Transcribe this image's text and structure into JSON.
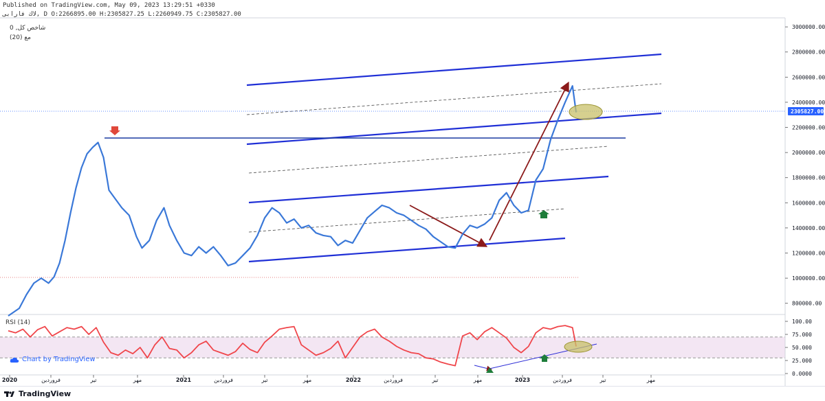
{
  "header": {
    "published": "Published on TradingView.com, May 09, 2023 13:29:51 +0330",
    "ohlc": "لاك فارابی, D O:2266895.00 H:2305827.25 L:2260949.75 C:2305827.00",
    "legend_title": "0 ,شاخص کل",
    "legend_ma": "(20) مع"
  },
  "rsi_label": "RSI (14)",
  "brand_text": "Chart by TradingView",
  "footer_logo": "TradingView",
  "colors": {
    "price": "#3a78d8",
    "channel": "#1f2fd6",
    "resistance": "#1a3aa0",
    "arrow": "#8b1a1a",
    "rsi": "#f0454a",
    "rsi_band": "#f3e6f3",
    "marker_up": "#1e7d3a",
    "marker_down": "#e0483a",
    "ellipse": "#c8c06a",
    "last_price": "#2962ff"
  },
  "chart_data": [
    {
      "type": "line",
      "title": "شاخص کل",
      "y_axis_ticks": [
        "3000000.00",
        "2800000.00",
        "2600000.00",
        "2400000.00",
        "2200000.00",
        "2000000.00",
        "1800000.00",
        "1600000.00",
        "1400000.00",
        "1200000.00",
        "1000000.00",
        "800000.00"
      ],
      "ylim": [
        700000,
        3050000
      ],
      "x_axis_ticks": [
        "2020",
        "فروردین",
        "تیر",
        "مهر",
        "2021",
        "فروردین",
        "تیر",
        "مهر",
        "2022",
        "فروردین",
        "تیر",
        "مهر",
        "2023",
        "فروردین",
        "تیر",
        "مهر"
      ],
      "last_price_label": "2305827.00",
      "series": [
        {
          "name": "شاخص کل",
          "points": [
            [
              0,
              700000
            ],
            [
              6,
              760000
            ],
            [
              10,
              870000
            ],
            [
              14,
              960000
            ],
            [
              18,
              1000000
            ],
            [
              22,
              960000
            ],
            [
              25,
              1010000
            ],
            [
              28,
              1120000
            ],
            [
              31,
              1300000
            ],
            [
              34,
              1520000
            ],
            [
              37,
              1720000
            ],
            [
              40,
              1880000
            ],
            [
              43,
              1990000
            ],
            [
              46,
              2040000
            ],
            [
              49,
              2080000
            ],
            [
              52,
              1960000
            ],
            [
              55,
              1700000
            ],
            [
              58,
              1640000
            ],
            [
              62,
              1560000
            ],
            [
              66,
              1500000
            ],
            [
              70,
              1330000
            ],
            [
              73,
              1240000
            ],
            [
              77,
              1300000
            ],
            [
              81,
              1460000
            ],
            [
              85,
              1560000
            ],
            [
              88,
              1420000
            ],
            [
              92,
              1300000
            ],
            [
              96,
              1200000
            ],
            [
              100,
              1180000
            ],
            [
              104,
              1250000
            ],
            [
              108,
              1200000
            ],
            [
              112,
              1250000
            ],
            [
              116,
              1180000
            ],
            [
              120,
              1100000
            ],
            [
              124,
              1120000
            ],
            [
              128,
              1180000
            ],
            [
              132,
              1240000
            ],
            [
              136,
              1340000
            ],
            [
              140,
              1480000
            ],
            [
              144,
              1560000
            ],
            [
              148,
              1520000
            ],
            [
              152,
              1440000
            ],
            [
              156,
              1470000
            ],
            [
              160,
              1400000
            ],
            [
              164,
              1420000
            ],
            [
              168,
              1360000
            ],
            [
              172,
              1340000
            ],
            [
              176,
              1330000
            ],
            [
              180,
              1260000
            ],
            [
              184,
              1300000
            ],
            [
              188,
              1280000
            ],
            [
              192,
              1380000
            ],
            [
              196,
              1480000
            ],
            [
              200,
              1530000
            ],
            [
              204,
              1580000
            ],
            [
              208,
              1560000
            ],
            [
              212,
              1520000
            ],
            [
              216,
              1500000
            ],
            [
              220,
              1460000
            ],
            [
              224,
              1420000
            ],
            [
              228,
              1390000
            ],
            [
              232,
              1330000
            ],
            [
              236,
              1290000
            ],
            [
              240,
              1250000
            ],
            [
              244,
              1240000
            ],
            [
              248,
              1350000
            ],
            [
              252,
              1420000
            ],
            [
              256,
              1400000
            ],
            [
              260,
              1430000
            ],
            [
              264,
              1480000
            ],
            [
              268,
              1620000
            ],
            [
              272,
              1680000
            ],
            [
              276,
              1580000
            ],
            [
              280,
              1520000
            ],
            [
              284,
              1540000
            ],
            [
              288,
              1780000
            ],
            [
              292,
              1870000
            ],
            [
              296,
              2100000
            ],
            [
              300,
              2260000
            ],
            [
              304,
              2400000
            ],
            [
              308,
              2530000
            ],
            [
              310,
              2320000
            ]
          ]
        }
      ],
      "annotations": {
        "ellipse_last": true,
        "marker_down_at_peak": true,
        "marker_up_near_end": true
      }
    },
    {
      "type": "line",
      "title": "RSI (14)",
      "y_axis_ticks": [
        "100.00",
        "75.000",
        "50.000",
        "25.000",
        "0.0000"
      ],
      "ylim": [
        0,
        100
      ],
      "band": [
        30,
        70
      ],
      "series": [
        {
          "name": "RSI (14)",
          "points": [
            [
              0,
              82
            ],
            [
              4,
              78
            ],
            [
              8,
              85
            ],
            [
              12,
              70
            ],
            [
              16,
              84
            ],
            [
              20,
              90
            ],
            [
              24,
              72
            ],
            [
              28,
              80
            ],
            [
              32,
              88
            ],
            [
              36,
              85
            ],
            [
              40,
              90
            ],
            [
              44,
              75
            ],
            [
              48,
              88
            ],
            [
              52,
              60
            ],
            [
              56,
              40
            ],
            [
              60,
              35
            ],
            [
              64,
              45
            ],
            [
              68,
              38
            ],
            [
              72,
              50
            ],
            [
              76,
              30
            ],
            [
              80,
              55
            ],
            [
              84,
              70
            ],
            [
              88,
              48
            ],
            [
              92,
              45
            ],
            [
              96,
              30
            ],
            [
              100,
              40
            ],
            [
              104,
              55
            ],
            [
              108,
              62
            ],
            [
              112,
              45
            ],
            [
              116,
              40
            ],
            [
              120,
              35
            ],
            [
              124,
              42
            ],
            [
              128,
              58
            ],
            [
              132,
              46
            ],
            [
              136,
              40
            ],
            [
              140,
              60
            ],
            [
              144,
              72
            ],
            [
              148,
              85
            ],
            [
              152,
              88
            ],
            [
              156,
              90
            ],
            [
              160,
              55
            ],
            [
              164,
              45
            ],
            [
              168,
              35
            ],
            [
              172,
              40
            ],
            [
              176,
              48
            ],
            [
              180,
              62
            ],
            [
              184,
              30
            ],
            [
              188,
              50
            ],
            [
              192,
              70
            ],
            [
              196,
              80
            ],
            [
              200,
              85
            ],
            [
              204,
              70
            ],
            [
              208,
              62
            ],
            [
              212,
              52
            ],
            [
              216,
              45
            ],
            [
              220,
              40
            ],
            [
              224,
              38
            ],
            [
              228,
              30
            ],
            [
              232,
              28
            ],
            [
              236,
              22
            ],
            [
              240,
              18
            ],
            [
              244,
              15
            ],
            [
              248,
              72
            ],
            [
              252,
              78
            ],
            [
              256,
              65
            ],
            [
              260,
              80
            ],
            [
              264,
              88
            ],
            [
              268,
              78
            ],
            [
              272,
              68
            ],
            [
              276,
              50
            ],
            [
              280,
              40
            ],
            [
              284,
              52
            ],
            [
              288,
              78
            ],
            [
              292,
              88
            ],
            [
              296,
              85
            ],
            [
              300,
              90
            ],
            [
              304,
              92
            ],
            [
              308,
              88
            ],
            [
              310,
              52
            ]
          ]
        }
      ],
      "annotations": {
        "divergence_arrow": true,
        "trendline_to_end": true,
        "marker_up_low": true,
        "marker_up_mid": true,
        "ellipse_last": true
      }
    }
  ]
}
